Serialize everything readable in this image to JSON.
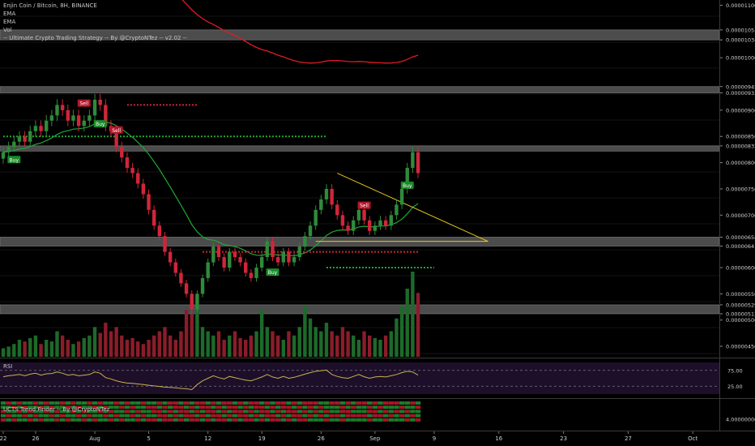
{
  "title": "Enjin Coin / Bitcoin, 8H, BINANCE",
  "indicators": [
    "EMA",
    "EMA",
    "Vol",
    "-- Ultimate Crypto Trading Strategy -- By @CryptoNTez -- v2.02 --"
  ],
  "rsi_label": "RSI",
  "trend_label": "UCTS Trend Finder -- By @CryptoNTez",
  "colors": {
    "up": "#2e8b3a",
    "down": "#d0263a",
    "ema_slow": "#e01b24",
    "ema_fast": "#1fa832",
    "triangle": "#e6c619",
    "rsi": "#c8b24a",
    "rsi_bg": "#1d0f2a",
    "band": "#5a5a5a"
  },
  "chart_data": {
    "type": "candlestick",
    "symbol": "Enjin Coin / Bitcoin",
    "interval": "8H",
    "exchange": "BINANCE",
    "price_axis_ticks": [
      "0.00001100",
      "0.00001053",
      "0.00001034",
      "0.00001000",
      "0.00000945",
      "0.00000933",
      "0.00000900",
      "0.00000850",
      "0.00000832",
      "0.00000800",
      "0.00000750",
      "0.00000700",
      "0.00000658",
      "0.00000641",
      "0.00000600",
      "0.00000550",
      "0.00000529",
      "0.00000512",
      "0.00000500",
      "0.00000450"
    ],
    "x_axis_labels": [
      "22",
      "26",
      "Aug",
      "5",
      "12",
      "19",
      "26",
      "Sep",
      "9",
      "16",
      "23",
      "27",
      "Oct"
    ],
    "ylim": [
      4.3e-06,
      1.11e-05
    ],
    "price_bands": [
      {
        "label": "0.00001053",
        "from": 1.034e-05,
        "to": 1.053e-05
      },
      {
        "label": "0.00000945",
        "from": 9.33e-06,
        "to": 9.45e-06
      },
      {
        "label": "0.00000832",
        "from": 8.22e-06,
        "to": 8.32e-06
      },
      {
        "label": "0.00000658",
        "from": 6.41e-06,
        "to": 6.58e-06
      },
      {
        "label": "0.00000529",
        "from": 5.12e-06,
        "to": 5.29e-06
      }
    ],
    "candles_close": [
      8.2e-06,
      8.3e-06,
      8.4e-06,
      8.5e-06,
      8.4e-06,
      8.6e-06,
      8.7e-06,
      8.6e-06,
      8.8e-06,
      8.9e-06,
      9.1e-06,
      9e-06,
      8.8e-06,
      8.9e-06,
      8.7e-06,
      8.8e-06,
      8.9e-06,
      9.2e-06,
      9.1e-06,
      8.7e-06,
      8.6e-06,
      8.3e-06,
      8.1e-06,
      7.9e-06,
      7.8e-06,
      7.6e-06,
      7.4e-06,
      7.1e-06,
      6.8e-06,
      6.6e-06,
      6.3e-06,
      6.1e-06,
      5.9e-06,
      5.7e-06,
      5.5e-06,
      5.2e-06,
      5.5e-06,
      5.8e-06,
      6.1e-06,
      6.4e-06,
      6.2e-06,
      6e-06,
      6.3e-06,
      6.2e-06,
      6.1e-06,
      5.9e-06,
      5.8e-06,
      6e-06,
      6.2e-06,
      6.5e-06,
      6.2e-06,
      6.1e-06,
      6.3e-06,
      6.1e-06,
      6.2e-06,
      6.4e-06,
      6.6e-06,
      6.8e-06,
      7.1e-06,
      7.3e-06,
      7.5e-06,
      7.2e-06,
      7e-06,
      6.8e-06,
      6.7e-06,
      6.9e-06,
      7.1e-06,
      6.9e-06,
      6.7e-06,
      6.8e-06,
      6.9e-06,
      6.8e-06,
      7e-06,
      7.2e-06,
      7.5e-06,
      7.9e-06,
      8.2e-06,
      7.8e-06
    ],
    "volume_rel": [
      0.1,
      0.12,
      0.15,
      0.2,
      0.18,
      0.22,
      0.25,
      0.15,
      0.2,
      0.18,
      0.3,
      0.25,
      0.2,
      0.15,
      0.18,
      0.22,
      0.25,
      0.35,
      0.28,
      0.4,
      0.3,
      0.35,
      0.25,
      0.2,
      0.22,
      0.18,
      0.15,
      0.2,
      0.25,
      0.3,
      0.35,
      0.25,
      0.2,
      0.3,
      0.55,
      0.5,
      0.6,
      0.35,
      0.3,
      0.25,
      0.3,
      0.2,
      0.25,
      0.3,
      0.22,
      0.2,
      0.25,
      0.3,
      0.55,
      0.35,
      0.3,
      0.25,
      0.2,
      0.3,
      0.25,
      0.35,
      0.6,
      0.45,
      0.35,
      0.3,
      0.4,
      0.3,
      0.25,
      0.35,
      0.3,
      0.25,
      0.2,
      0.3,
      0.25,
      0.22,
      0.2,
      0.25,
      0.3,
      0.45,
      0.6,
      0.8,
      1.0,
      0.75
    ],
    "rsi_levels": [
      "75.00",
      "25.00"
    ],
    "rsi_range": [
      0,
      100
    ],
    "rsi_values": [
      55,
      58,
      60,
      62,
      58,
      63,
      66,
      60,
      64,
      65,
      70,
      66,
      60,
      62,
      58,
      60,
      62,
      70,
      66,
      52,
      48,
      42,
      38,
      35,
      34,
      32,
      30,
      28,
      26,
      24,
      22,
      21,
      20,
      18,
      17,
      14,
      30,
      42,
      50,
      58,
      52,
      48,
      56,
      52,
      48,
      44,
      42,
      48,
      54,
      62,
      54,
      50,
      56,
      50,
      53,
      58,
      63,
      68,
      72,
      74,
      76,
      62,
      56,
      52,
      50,
      56,
      62,
      55,
      50,
      54,
      56,
      54,
      58,
      62,
      68,
      72,
      70,
      60
    ],
    "trend_axis_tick": "4.00000000",
    "signals": [
      {
        "text": "Buy",
        "type": "buy",
        "index": 2
      },
      {
        "text": "Sell",
        "type": "sell",
        "index": 15
      },
      {
        "text": "Buy",
        "type": "buy",
        "index": 18
      },
      {
        "text": "Sell",
        "type": "sell",
        "index": 21
      },
      {
        "text": "Buy",
        "type": "buy",
        "index": 50
      },
      {
        "text": "Sell",
        "type": "sell",
        "index": 67
      },
      {
        "text": "Buy",
        "type": "buy",
        "index": 75
      }
    ]
  }
}
